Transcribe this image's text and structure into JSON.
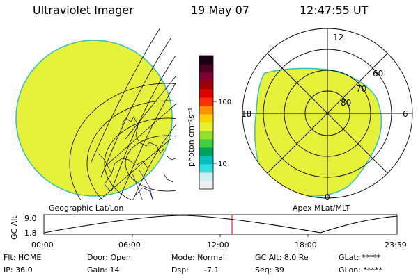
{
  "header": {
    "instrument": "Ultraviolet Imager",
    "date": "19 May 07",
    "time": "12:47:55 UT"
  },
  "colorbar": {
    "unit_label": "photon cm⁻²s⁻¹",
    "ticks": [
      "100",
      "10"
    ],
    "colors": [
      "#f2f2f2",
      "#d0f0f0",
      "#30e0e0",
      "#00c0c0",
      "#00a060",
      "#40d040",
      "#90e030",
      "#e8f030",
      "#ffd000",
      "#ff9000",
      "#ff3000",
      "#e00000",
      "#a00000",
      "#800030",
      "#4a0020",
      "#1a0010"
    ]
  },
  "polar": {
    "mlt_labels": {
      "top": "12",
      "left": "18",
      "right": "6",
      "bottom": "0"
    },
    "lat_labels": [
      "60",
      "70",
      "80"
    ],
    "fill_color": "#e6f23a"
  },
  "map": {
    "fill_color": "#e6f23a"
  },
  "projections": {
    "left": "Geographic Lat/Lon",
    "right": "Apex MLat/MLT"
  },
  "altitude_plot": {
    "ylabel": "GC Alt",
    "yticks": [
      "9.0",
      "1.8"
    ],
    "xticks": [
      "00:00",
      "06:00",
      "12:00",
      "18:00",
      "23:59"
    ],
    "cursor_color": "#e00000"
  },
  "info": {
    "flt": "Flt: HOME",
    "ip": "IP: 36.0",
    "door": "Door: Open",
    "gain": "Gain: 14",
    "mode": "Mode: Normal",
    "dsp_label": "Dsp:",
    "dsp_value": "-7.1",
    "gc_alt": "GC Alt: 8.0 Re",
    "seq": "Seq: 39",
    "glat": "GLat: *****",
    "glon": "GLon: *****"
  }
}
